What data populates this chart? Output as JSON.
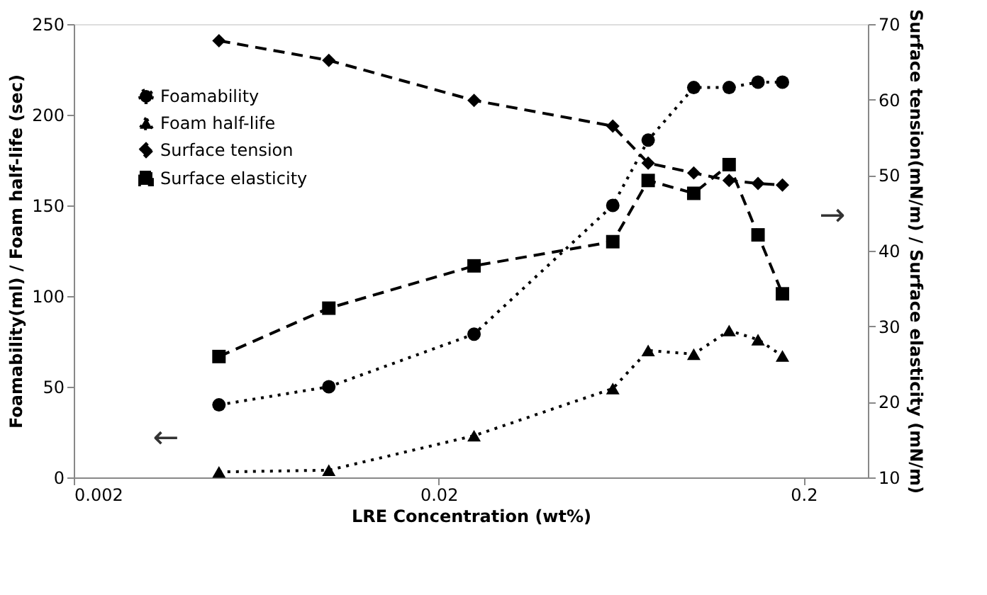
{
  "chart_data": {
    "type": "line",
    "xlabel": "LRE Concentration (wt%)",
    "ylabel": "Foamability(ml) / Foam half-life (sec)",
    "y2label": "Surface tension(mN/m) / Surface elasticity (mN/m)",
    "x": [
      0.005,
      0.01,
      0.025,
      0.06,
      0.075,
      0.1,
      0.125,
      0.15,
      0.175
    ],
    "series": [
      {
        "name": "Foamability",
        "color": "#000000",
        "marker": "circle",
        "line_style": "dotted",
        "values": [
          40,
          50,
          79,
          150,
          186,
          215,
          215,
          218,
          218
        ]
      },
      {
        "name": "Foam half-life",
        "color": "#000000",
        "marker": "triangle",
        "line_style": "dotted",
        "values": [
          3,
          4,
          23,
          49,
          70,
          68,
          81,
          76,
          67
        ]
      },
      {
        "name": "Surface tension",
        "color": "#000000",
        "marker": "diamond",
        "line_style": "dashed",
        "axis": "y2",
        "values": [
          67.8,
          65.2,
          59.9,
          56.5,
          51.6,
          50.3,
          49.3,
          48.9,
          48.7
        ]
      },
      {
        "name": "Surface elasticity",
        "color": "#000000",
        "marker": "square",
        "line_style": "dashed",
        "axis": "y2",
        "values": [
          26.0,
          32.4,
          38.0,
          41.2,
          49.3,
          47.6,
          51.4,
          42.1,
          34.3
        ]
      }
    ],
    "log": "x",
    "xlim": [
      0.002,
      0.3
    ],
    "xticks": [
      0.002,
      0.02,
      0.2
    ],
    "ylim": [
      0,
      250
    ],
    "yticks": [
      0,
      50,
      100,
      150,
      200,
      250
    ],
    "y2lim": [
      10,
      70
    ],
    "y2ticks": [
      10,
      20,
      30,
      40,
      50,
      60,
      70
    ],
    "grid": false,
    "legend": "top left",
    "annotations": [
      "←",
      "→"
    ]
  }
}
